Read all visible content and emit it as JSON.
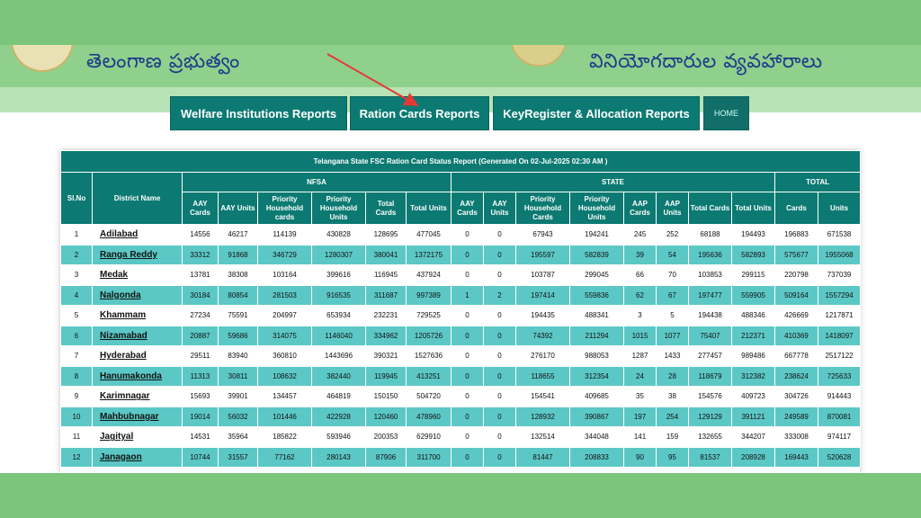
{
  "header": {
    "gov_title": "తెలంగాణ ప్రభుత్వం",
    "dept_title": "వినియోగదారుల వ్యవహారాలు"
  },
  "nav": {
    "items": [
      {
        "label": "Welfare Institutions Reports"
      },
      {
        "label": "Ration Cards Reports"
      },
      {
        "label": "KeyRegister & Allocation Reports"
      },
      {
        "label": "HOME"
      }
    ]
  },
  "colors": {
    "teal": "#0c7a72",
    "row_alt": "#5cc8c5",
    "frame_green": "#7bc67a",
    "arrow": "#e53935"
  },
  "report": {
    "caption": "Telangana State FSC Ration Card Status Report (Generated On 02-Jul-2025 02:30 AM )",
    "groups": {
      "slno": "Sl.No",
      "district": "District Name",
      "nfsa": "NFSA",
      "state": "STATE",
      "total": "TOTAL"
    },
    "subheaders": {
      "aay_cards": "AAY Cards",
      "aay_units": "AAY Units",
      "ph_cards": "Priority Household cards",
      "ph_units": "Priority Household Units",
      "total_cards": "Total Cards",
      "total_units": "Total Units",
      "s_aay_cards": "AAY Cards",
      "s_aay_units": "AAY Units",
      "s_ph_cards": "Priority Household Cards",
      "s_ph_units": "Priority Household Units",
      "aap_cards": "AAP Cards",
      "aap_units": "AAP Units",
      "s_total_cards": "Total Cards",
      "s_total_units": "Total Units",
      "cards": "Cards",
      "units": "Units"
    },
    "rows": [
      [
        "1",
        "Adilabad",
        "14556",
        "46217",
        "114139",
        "430828",
        "128695",
        "477045",
        "0",
        "0",
        "67943",
        "194241",
        "245",
        "252",
        "68188",
        "194493",
        "196883",
        "671538"
      ],
      [
        "2",
        "Ranga Reddy",
        "33312",
        "91868",
        "346729",
        "1280307",
        "380041",
        "1372175",
        "0",
        "0",
        "195597",
        "582839",
        "39",
        "54",
        "195636",
        "582893",
        "575677",
        "1955068"
      ],
      [
        "3",
        "Medak",
        "13781",
        "38308",
        "103164",
        "399616",
        "116945",
        "437924",
        "0",
        "0",
        "103787",
        "299045",
        "66",
        "70",
        "103853",
        "299115",
        "220798",
        "737039"
      ],
      [
        "4",
        "Nalgonda",
        "30184",
        "80854",
        "281503",
        "916535",
        "311687",
        "997389",
        "1",
        "2",
        "197414",
        "559836",
        "62",
        "67",
        "197477",
        "559905",
        "509164",
        "1557294"
      ],
      [
        "5",
        "Khammam",
        "27234",
        "75591",
        "204997",
        "653934",
        "232231",
        "729525",
        "0",
        "0",
        "194435",
        "488341",
        "3",
        "5",
        "194438",
        "488346",
        "426669",
        "1217871"
      ],
      [
        "6",
        "Nizamabad",
        "20887",
        "59686",
        "314075",
        "1146040",
        "334962",
        "1205726",
        "0",
        "0",
        "74392",
        "211294",
        "1015",
        "1077",
        "75407",
        "212371",
        "410369",
        "1418097"
      ],
      [
        "7",
        "Hyderabad",
        "29511",
        "83940",
        "360810",
        "1443696",
        "390321",
        "1527636",
        "0",
        "0",
        "276170",
        "988053",
        "1287",
        "1433",
        "277457",
        "989486",
        "667778",
        "2517122"
      ],
      [
        "8",
        "Hanumakonda",
        "11313",
        "30811",
        "108632",
        "382440",
        "119945",
        "413251",
        "0",
        "0",
        "118655",
        "312354",
        "24",
        "28",
        "118679",
        "312382",
        "238624",
        "725633"
      ],
      [
        "9",
        "Karimnagar",
        "15693",
        "39901",
        "134457",
        "464819",
        "150150",
        "504720",
        "0",
        "0",
        "154541",
        "409685",
        "35",
        "38",
        "154576",
        "409723",
        "304726",
        "914443"
      ],
      [
        "10",
        "Mahbubnagar",
        "19014",
        "56032",
        "101446",
        "422928",
        "120460",
        "478960",
        "0",
        "0",
        "128932",
        "390867",
        "197",
        "254",
        "129129",
        "391121",
        "249589",
        "870081"
      ],
      [
        "11",
        "Jagityal",
        "14531",
        "35964",
        "185822",
        "593946",
        "200353",
        "629910",
        "0",
        "0",
        "132514",
        "344048",
        "141",
        "159",
        "132655",
        "344207",
        "333008",
        "974117"
      ],
      [
        "12",
        "Janagaon",
        "10744",
        "31557",
        "77162",
        "280143",
        "87906",
        "311700",
        "0",
        "0",
        "81447",
        "208833",
        "90",
        "95",
        "81537",
        "208928",
        "169443",
        "520628"
      ]
    ]
  }
}
